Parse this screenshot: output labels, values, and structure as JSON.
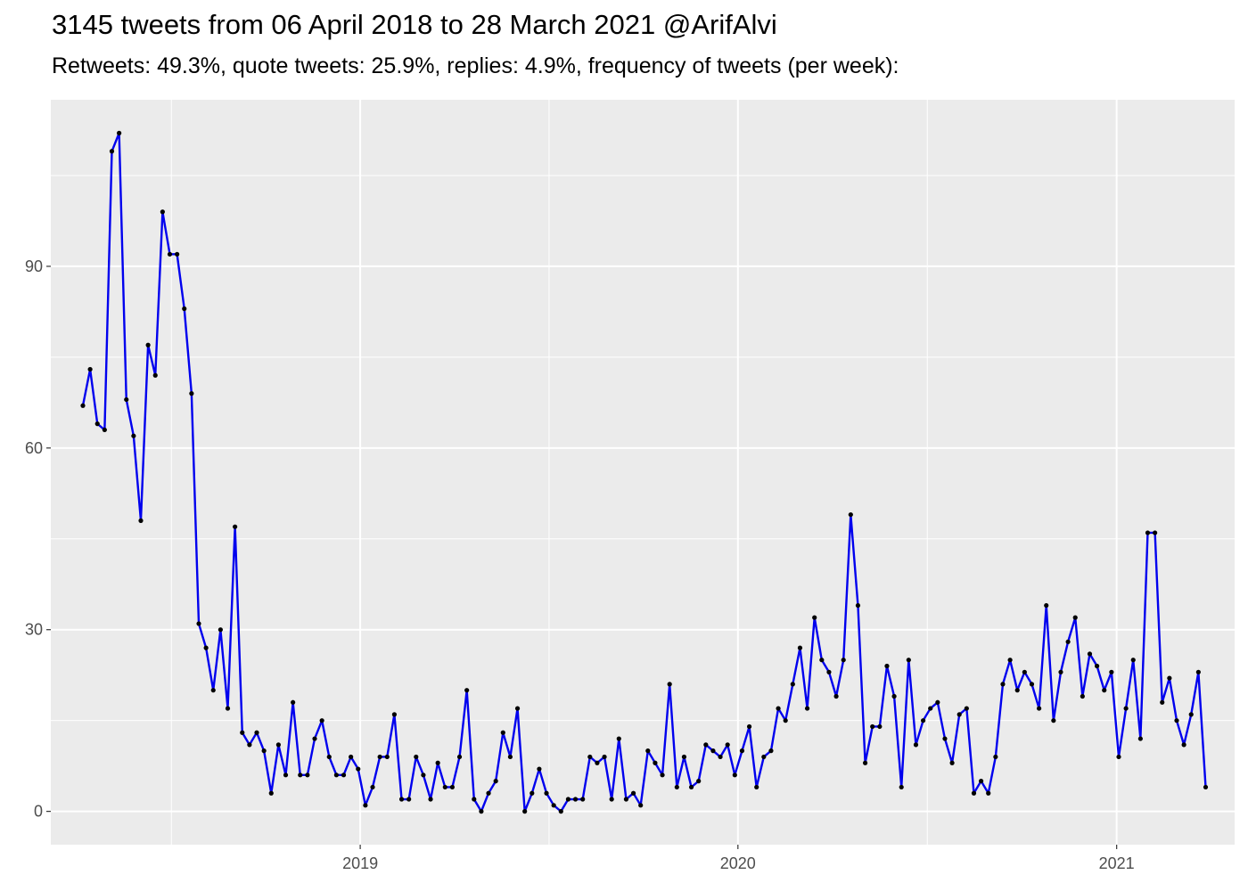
{
  "chart_data": {
    "type": "line",
    "title": "3145 tweets from 06 April 2018 to 28 March 2021 @ArifAlvi",
    "subtitle": "Retweets: 49.3%, quote tweets: 25.9%, replies: 4.9%, frequency of tweets (per week):",
    "xlabel": "",
    "ylabel": "",
    "x_start": "2018-04-06",
    "x_end": "2021-03-28",
    "x_range": [
      "2018-03-08",
      "2021-04-25"
    ],
    "xticks": [
      {
        "date": "2019-01-01",
        "label": "2019"
      },
      {
        "date": "2020-01-01",
        "label": "2020"
      },
      {
        "date": "2021-01-01",
        "label": "2021"
      }
    ],
    "yticks": [
      0,
      30,
      60,
      90
    ],
    "ylim": [
      -5.5,
      117.5
    ],
    "grid": true,
    "background": "#ebebeb",
    "line_color": "#0000ee",
    "point_color": "#000000",
    "series": [
      {
        "x": [
          "2018-04-08",
          "2018-04-15",
          "2018-04-22",
          "2018-04-29",
          "2018-05-06",
          "2018-05-13",
          "2018-05-20",
          "2018-05-27",
          "2018-06-03",
          "2018-06-10",
          "2018-06-17",
          "2018-06-24",
          "2018-07-01",
          "2018-07-08",
          "2018-07-15",
          "2018-07-22",
          "2018-07-29",
          "2018-08-05",
          "2018-08-12",
          "2018-08-19",
          "2018-08-26",
          "2018-09-02",
          "2018-09-09",
          "2018-09-16",
          "2018-09-23",
          "2018-09-30",
          "2018-10-07",
          "2018-10-14",
          "2018-10-21",
          "2018-10-28",
          "2018-11-04",
          "2018-11-11",
          "2018-11-18",
          "2018-11-25",
          "2018-12-02",
          "2018-12-09",
          "2018-12-16",
          "2018-12-23",
          "2018-12-30",
          "2019-01-06",
          "2019-01-13",
          "2019-01-20",
          "2019-01-27",
          "2019-02-03",
          "2019-02-10",
          "2019-02-17",
          "2019-02-24",
          "2019-03-03",
          "2019-03-10",
          "2019-03-17",
          "2019-03-24",
          "2019-03-31",
          "2019-04-07",
          "2019-04-14",
          "2019-04-21",
          "2019-04-28",
          "2019-05-05",
          "2019-05-12",
          "2019-05-19",
          "2019-05-26",
          "2019-06-02",
          "2019-06-09",
          "2019-06-16",
          "2019-06-23",
          "2019-06-30",
          "2019-07-07",
          "2019-07-14",
          "2019-07-21",
          "2019-07-28",
          "2019-08-04",
          "2019-08-11",
          "2019-08-18",
          "2019-08-25",
          "2019-09-01",
          "2019-09-08",
          "2019-09-15",
          "2019-09-22",
          "2019-09-29",
          "2019-10-06",
          "2019-10-13",
          "2019-10-20",
          "2019-10-27",
          "2019-11-03",
          "2019-11-10",
          "2019-11-17",
          "2019-11-24",
          "2019-12-01",
          "2019-12-08",
          "2019-12-15",
          "2019-12-22",
          "2019-12-29",
          "2020-01-05",
          "2020-01-12",
          "2020-01-19",
          "2020-01-26",
          "2020-02-02",
          "2020-02-09",
          "2020-02-16",
          "2020-02-23",
          "2020-03-01",
          "2020-03-08",
          "2020-03-15",
          "2020-03-22",
          "2020-03-29",
          "2020-04-05",
          "2020-04-12",
          "2020-04-19",
          "2020-04-26",
          "2020-05-03",
          "2020-05-10",
          "2020-05-17",
          "2020-05-24",
          "2020-05-31",
          "2020-06-07",
          "2020-06-14",
          "2020-06-21",
          "2020-06-28",
          "2020-07-05",
          "2020-07-12",
          "2020-07-19",
          "2020-07-26",
          "2020-08-02",
          "2020-08-09",
          "2020-08-16",
          "2020-08-23",
          "2020-08-30",
          "2020-09-06",
          "2020-09-13",
          "2020-09-20",
          "2020-09-27",
          "2020-10-04",
          "2020-10-11",
          "2020-10-18",
          "2020-10-25",
          "2020-11-01",
          "2020-11-08",
          "2020-11-15",
          "2020-11-22",
          "2020-11-29",
          "2020-12-06",
          "2020-12-13",
          "2020-12-20",
          "2020-12-27",
          "2021-01-03",
          "2021-01-10",
          "2021-01-17",
          "2021-01-24",
          "2021-01-31",
          "2021-02-07",
          "2021-02-14",
          "2021-02-21",
          "2021-02-28",
          "2021-03-07",
          "2021-03-14",
          "2021-03-21",
          "2021-03-28"
        ],
        "y": [
          67,
          73,
          64,
          63,
          109,
          112,
          68,
          62,
          48,
          77,
          72,
          99,
          92,
          92,
          83,
          69,
          31,
          27,
          20,
          30,
          17,
          47,
          13,
          11,
          13,
          10,
          3,
          11,
          6,
          18,
          6,
          6,
          12,
          15,
          9,
          6,
          6,
          9,
          7,
          1,
          4,
          9,
          9,
          16,
          2,
          2,
          9,
          6,
          2,
          8,
          4,
          4,
          9,
          20,
          2,
          0,
          3,
          5,
          13,
          9,
          17,
          0,
          3,
          7,
          3,
          1,
          0,
          2,
          2,
          2,
          9,
          8,
          9,
          2,
          12,
          2,
          3,
          1,
          10,
          8,
          6,
          21,
          4,
          9,
          4,
          5,
          11,
          10,
          9,
          11,
          6,
          10,
          14,
          4,
          9,
          10,
          17,
          15,
          21,
          27,
          17,
          32,
          25,
          23,
          19,
          25,
          49,
          34,
          8,
          14,
          14,
          24,
          19,
          4,
          25,
          11,
          15,
          17,
          18,
          12,
          8,
          16,
          17,
          3,
          5,
          3,
          9,
          21,
          25,
          20,
          23,
          21,
          17,
          34,
          15,
          23,
          28,
          32,
          19,
          26,
          24,
          20,
          23,
          9,
          17,
          25,
          12,
          46,
          46,
          18,
          22,
          15,
          11,
          16,
          23,
          4
        ]
      }
    ]
  }
}
